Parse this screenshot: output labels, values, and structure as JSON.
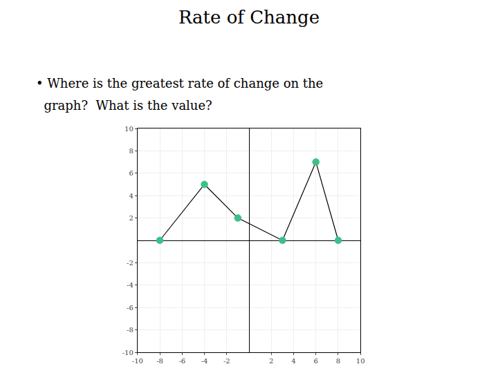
{
  "chart_data": {
    "type": "line",
    "title": "Rate of Change",
    "annotations": [
      "• Where is the greatest rate of change on the",
      "  graph?  What is the value?"
    ],
    "x": [
      -8,
      -4,
      -1,
      3,
      6,
      8
    ],
    "values": [
      0,
      5,
      2,
      0,
      7,
      0
    ],
    "color": "#000000",
    "colors": [
      "#3dbf8a",
      "#3dbf8a",
      "#3dbf8a",
      "#3dbf8a",
      "#3dbf8a",
      "#3dbf8a"
    ],
    "marker": "circle",
    "xlim": [
      -10,
      10
    ],
    "ylim": [
      -10,
      10
    ],
    "xticks": [
      -10,
      -8,
      -6,
      -4,
      -2,
      2,
      4,
      6,
      8,
      10
    ],
    "yticks": [
      -10,
      -8,
      -6,
      -4,
      -2,
      2,
      4,
      6,
      8,
      10
    ],
    "grid": true
  }
}
